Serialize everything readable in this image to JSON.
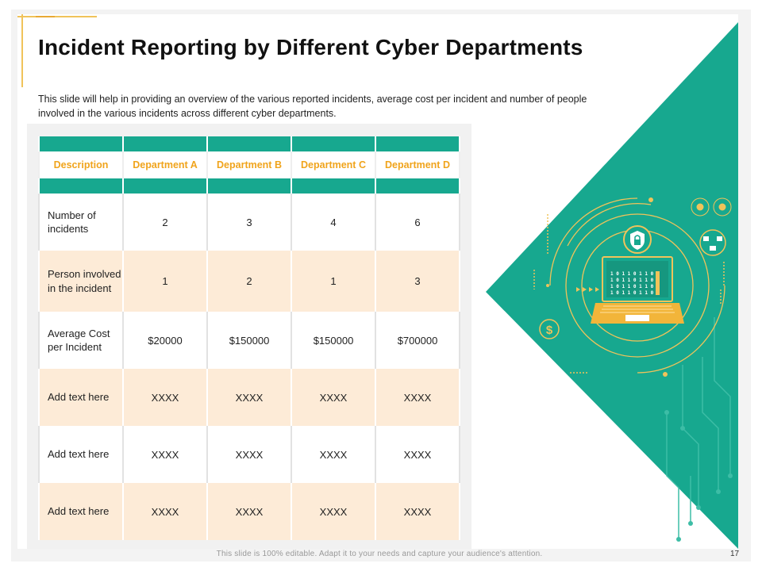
{
  "slide": {
    "title": "Incident Reporting by Different Cyber Departments",
    "subtitle": "This slide will help in providing an overview of the various reported incidents, average cost per incident and  number of people involved in the various incidents across different cyber departments.",
    "footer": "This slide is 100% editable. Adapt it to your needs and capture  your audience's attention.",
    "page_number": "17"
  },
  "table": {
    "headers": [
      "Description",
      "Department A",
      "Department B",
      "Department C",
      "Department D"
    ],
    "rows": [
      {
        "label": "Number of incidents",
        "values": [
          "2",
          "3",
          "4",
          "6"
        ]
      },
      {
        "label": "Person involved in the incident",
        "values": [
          "1",
          "2",
          "1",
          "3"
        ]
      },
      {
        "label": "Average Cost per Incident",
        "values": [
          "$20000",
          "$150000",
          "$150000",
          "$700000"
        ]
      },
      {
        "label": "Add text here",
        "values": [
          "XXXX",
          "XXXX",
          "XXXX",
          "XXXX"
        ]
      },
      {
        "label": "Add text here",
        "values": [
          "XXXX",
          "XXXX",
          "XXXX",
          "XXXX"
        ]
      },
      {
        "label": "Add text here",
        "values": [
          "XXXX",
          "XXXX",
          "XXXX",
          "XXXX"
        ]
      }
    ]
  },
  "illustration": {
    "binary_lines": [
      "1 0 1 1 0 1 1 0 1",
      "1 0 1 1 0 1 1 0 1",
      "1 0 1 1 0 1 1 0 1",
      "1 0 1 1 0 1 1 0 1"
    ],
    "currency_symbol": "$",
    "shield_icon": "shield-lock-icon",
    "laptop_icon": "laptop-icon",
    "colors": {
      "teal": "#17a88f",
      "gold": "#f0c35a",
      "peach": "#fdebd7",
      "accent": "#f0a41c"
    }
  }
}
